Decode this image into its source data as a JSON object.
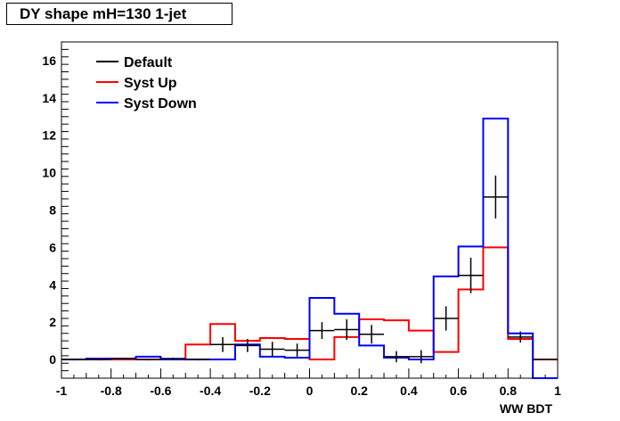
{
  "chart_data": {
    "type": "line",
    "title": "DY shape mH=130 1-jet",
    "xlabel": "WW BDT",
    "ylabel": "",
    "xlim": [
      -1,
      1
    ],
    "ylim": [
      -1,
      17
    ],
    "x_ticks": [
      -1,
      -0.8,
      -0.6,
      -0.4,
      -0.2,
      0,
      0.2,
      0.4,
      0.6,
      0.8,
      1
    ],
    "x_tick_labels": [
      "-1",
      "-0.8",
      "-0.6",
      "-0.4",
      "-0.2",
      "0",
      "0.2",
      "0.4",
      "0.6",
      "0.8",
      "1"
    ],
    "y_ticks": [
      0,
      2,
      4,
      6,
      8,
      10,
      12,
      14,
      16
    ],
    "y_tick_labels": [
      "0",
      "2",
      "4",
      "6",
      "8",
      "10",
      "12",
      "14",
      "16"
    ],
    "legend_position": "top-left",
    "bin_edges": [
      -1.0,
      -0.9,
      -0.8,
      -0.7,
      -0.6,
      -0.5,
      -0.4,
      -0.3,
      -0.2,
      -0.1,
      0.0,
      0.1,
      0.2,
      0.3,
      0.4,
      0.5,
      0.6,
      0.7,
      0.8,
      0.9,
      1.0
    ],
    "series": [
      {
        "name": "Default",
        "color": "#000000",
        "style": "points-with-errors",
        "values": [
          0.0,
          0.0,
          0.05,
          0.0,
          0.05,
          0.0,
          0.8,
          0.75,
          0.55,
          0.5,
          1.55,
          1.6,
          1.35,
          0.15,
          0.15,
          2.2,
          4.5,
          8.7,
          1.2,
          0.0
        ],
        "errors": [
          0.05,
          0.05,
          0.05,
          0.05,
          0.05,
          0.05,
          0.4,
          0.35,
          0.4,
          0.35,
          0.45,
          0.55,
          0.5,
          0.3,
          0.35,
          0.65,
          0.95,
          1.15,
          0.3,
          0.0
        ]
      },
      {
        "name": "Syst Up",
        "color": "#ff0000",
        "style": "step",
        "values": [
          0.0,
          0.0,
          0.0,
          0.0,
          0.0,
          0.8,
          1.9,
          1.0,
          1.15,
          1.1,
          0.0,
          1.2,
          2.15,
          2.1,
          1.55,
          0.4,
          3.75,
          6.0,
          1.1,
          0.0
        ]
      },
      {
        "name": "Syst Down",
        "color": "#0000ff",
        "style": "step",
        "values": [
          0.0,
          0.05,
          0.05,
          0.15,
          0.0,
          0.0,
          0.0,
          0.8,
          0.15,
          0.1,
          3.3,
          2.45,
          0.75,
          0.1,
          0.0,
          4.45,
          6.05,
          12.9,
          1.4,
          -1.0
        ]
      }
    ]
  }
}
